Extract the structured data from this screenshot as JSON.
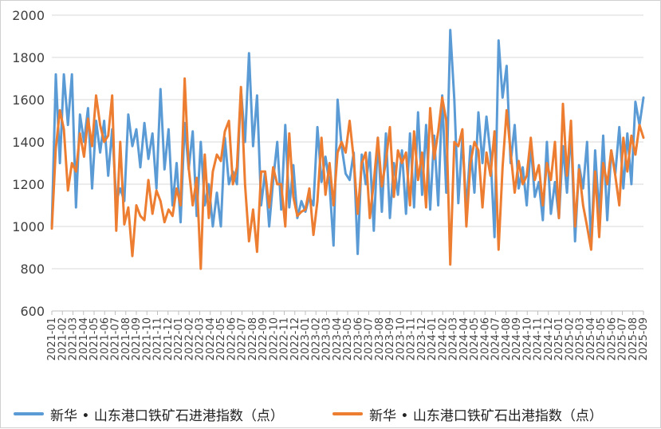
{
  "chart_data": {
    "type": "line",
    "title": "",
    "xlabel": "",
    "ylabel": "",
    "ylim": [
      600,
      2000
    ],
    "yticks": [
      600,
      800,
      1000,
      1200,
      1400,
      1600,
      1800,
      2000
    ],
    "grid": "horizontal",
    "legend_position": "bottom",
    "month_labels": [
      "2021-01",
      "2021-02",
      "2021-03",
      "2021-04",
      "2021-05",
      "2021-06",
      "2021-07",
      "2021-08",
      "2021-09",
      "2021-10",
      "2021-11",
      "2021-12",
      "2022-01",
      "2022-02",
      "2022-03",
      "2022-04",
      "2022-05",
      "2022-06",
      "2022-07",
      "2022-08",
      "2022-09",
      "2022-10",
      "2022-11",
      "2022-12",
      "2023-01",
      "2023-02",
      "2023-03",
      "2023-04",
      "2023-05",
      "2023-06",
      "2023-07",
      "2023-08",
      "2023-09",
      "2023-10",
      "2023-11",
      "2023-12",
      "2024-01",
      "2024-02",
      "2024-03",
      "2024-04",
      "2024-05",
      "2024-06",
      "2024-07",
      "2024-08",
      "2024-09",
      "2024-10",
      "2024-11",
      "2024-12",
      "2025-01",
      "2025-02",
      "2025-03",
      "2025-04",
      "2025-05",
      "2025-06",
      "2025-07",
      "2025-08",
      "2025-09"
    ],
    "series": [
      {
        "name": "新华 • 山东港口铁矿石进港指数（点）",
        "color": "#5B9BD5",
        "values": [
          1000,
          1720,
          1300,
          1720,
          1480,
          1720,
          1090,
          1530,
          1400,
          1560,
          1180,
          1500,
          1350,
          1500,
          1240,
          1460,
          1120,
          1180,
          1120,
          1530,
          1380,
          1460,
          1280,
          1490,
          1320,
          1440,
          1180,
          1650,
          1270,
          1460,
          1100,
          1300,
          1020,
          1490,
          1270,
          1450,
          1050,
          1400,
          1100,
          1200,
          1000,
          1160,
          1000,
          1420,
          1200,
          1260,
          1200,
          1650,
          1400,
          1820,
          1380,
          1620,
          1100,
          1260,
          1000,
          1220,
          1400,
          1080,
          1480,
          1090,
          1290,
          1040,
          1120,
          1070,
          1140,
          1100,
          1470,
          1210,
          1330,
          1200,
          910,
          1600,
          1380,
          1250,
          1220,
          1350,
          870,
          1340,
          1200,
          1350,
          980,
          1420,
          1070,
          1440,
          1040,
          1300,
          1150,
          1360,
          1060,
          1440,
          1090,
          1540,
          1150,
          1480,
          1080,
          1430,
          1100,
          1620,
          1160,
          1930,
          1600,
          1110,
          1420,
          1080,
          1380,
          1160,
          1540,
          1300,
          1520,
          1340,
          950,
          1880,
          1610,
          1760,
          1300,
          1480,
          1180,
          1280,
          1100,
          1390,
          1140,
          1210,
          1030,
          1400,
          1060,
          1210,
          1040,
          1380,
          1160,
          1460,
          930,
          1290,
          1180,
          1400,
          900,
          1360,
          1050,
          1430,
          1030,
          1360,
          1250,
          1470,
          1180,
          1440,
          1200,
          1590,
          1480,
          1610
        ],
        "stroke_width": 3
      },
      {
        "name": "新华 • 山东港口铁矿石出港指数（点）",
        "color": "#ED7D31",
        "values": [
          990,
          1370,
          1550,
          1460,
          1170,
          1300,
          1260,
          1440,
          1330,
          1510,
          1380,
          1620,
          1480,
          1400,
          1430,
          1620,
          980,
          1400,
          1010,
          1090,
          860,
          1100,
          1050,
          1030,
          1220,
          1060,
          1170,
          1120,
          1020,
          1080,
          1050,
          1180,
          1100,
          1700,
          1280,
          1100,
          1230,
          800,
          1340,
          1040,
          1260,
          1340,
          1310,
          1450,
          1500,
          1200,
          1280,
          1660,
          1200,
          930,
          1080,
          880,
          1260,
          1260,
          1090,
          1280,
          1200,
          1200,
          1000,
          1440,
          1140,
          1050,
          1070,
          1080,
          1180,
          960,
          1120,
          1420,
          1150,
          1300,
          1100,
          1350,
          1400,
          1350,
          1500,
          1320,
          1060,
          1300,
          1350,
          1040,
          1210,
          1420,
          1190,
          1310,
          1470,
          1140,
          1360,
          1300,
          1350,
          1100,
          1450,
          1220,
          1350,
          1090,
          1560,
          1320,
          1450,
          1610,
          1500,
          820,
          1400,
          1380,
          1460,
          1000,
          1300,
          1400,
          1360,
          1090,
          1350,
          1240,
          1450,
          890,
          1280,
          1550,
          1350,
          1160,
          1310,
          1200,
          1240,
          1420,
          1220,
          1290,
          1100,
          1300,
          1220,
          1400,
          1040,
          1580,
          1240,
          1500,
          1000,
          1270,
          1100,
          1000,
          890,
          1260,
          950,
          1300,
          1200,
          1360,
          1240,
          1100,
          1420,
          1260,
          1430,
          1340,
          1480,
          1420
        ]
      }
    ]
  }
}
